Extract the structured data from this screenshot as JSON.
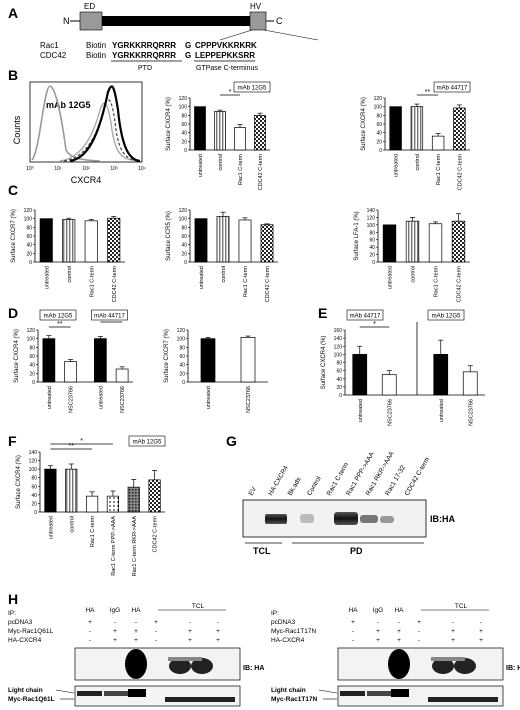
{
  "panel_labels": {
    "a": "A",
    "b": "B",
    "c": "C",
    "d": "D",
    "e": "E",
    "f": "F",
    "g": "G",
    "h": "H"
  },
  "schematic": {
    "n_term": "N",
    "c_term": "C",
    "domain_ed": "ED",
    "domain_hv": "HV",
    "rows": [
      {
        "name": "Rac1",
        "tag": "Biotin",
        "ptd": "YGRKKRRQRRR",
        "linker": "G",
        "ctail": "CPPPVKKRKRK"
      },
      {
        "name": "CDC42",
        "tag": "Biotin",
        "ptd": "YGRKKRRQRRR",
        "linker": "G",
        "ctail": "LEPPEPKKSRR"
      }
    ],
    "label_ptd": "PTD",
    "label_gtpase": "GTPase C-terminus"
  },
  "histogram": {
    "antibody": "mAb 12G5",
    "ylabel": "Counts",
    "xlabel": "CXCR4",
    "xticks": [
      "10⁰",
      "10¹",
      "10²",
      "10³",
      "10⁴"
    ]
  },
  "colors": {
    "black": "#000000",
    "white": "#ffffff",
    "striped": "#b0b0b0",
    "dark_gray": "#555555"
  },
  "chart_data": [
    {
      "id": "b1",
      "type": "bar",
      "annotation": "mAb 12G5",
      "ylabel": "Surface CXCR4 (%)",
      "ylim": [
        0,
        120
      ],
      "yticks": [
        0,
        20,
        40,
        60,
        80,
        100,
        120
      ],
      "categories": [
        "untreated",
        "control",
        "Rac1 C-term",
        "CDC42 C-term"
      ],
      "values": [
        100,
        89,
        52,
        80
      ],
      "errors": [
        0,
        3,
        7,
        5
      ],
      "fills": [
        "black",
        "striped",
        "white",
        "checker"
      ],
      "sig": [
        {
          "from": 1,
          "to": 2,
          "label": "*"
        }
      ]
    },
    {
      "id": "b2",
      "type": "bar",
      "annotation": "mAb 44717",
      "ylabel": "Surface CXCR4 (%)",
      "ylim": [
        0,
        120
      ],
      "yticks": [
        0,
        20,
        40,
        60,
        80,
        100,
        120
      ],
      "categories": [
        "untreated",
        "control",
        "Rac1 C-term",
        "CDC42 C-term"
      ],
      "values": [
        100,
        100,
        32,
        97
      ],
      "errors": [
        0,
        6,
        6,
        7
      ],
      "fills": [
        "black",
        "striped",
        "white",
        "checker"
      ],
      "sig": [
        {
          "from": 1,
          "to": 2,
          "label": "**"
        }
      ]
    },
    {
      "id": "c1",
      "type": "bar",
      "ylabel": "Surface CXCR7 (%)",
      "ylim": [
        0,
        120
      ],
      "yticks": [
        0,
        20,
        40,
        60,
        80,
        100,
        120
      ],
      "categories": [
        "untreated",
        "control",
        "Rac1 C-term",
        "CDC42 C-term"
      ],
      "values": [
        100,
        98,
        95,
        101
      ],
      "errors": [
        0,
        3,
        3,
        4
      ],
      "fills": [
        "black",
        "striped",
        "white",
        "checker"
      ]
    },
    {
      "id": "c2",
      "type": "bar",
      "ylabel": "Surface CCR5 (%)",
      "ylim": [
        0,
        120
      ],
      "yticks": [
        0,
        20,
        40,
        60,
        80,
        100,
        120
      ],
      "categories": [
        "untreated",
        "control",
        "Rac1 C-term",
        "CDC42 C-term"
      ],
      "values": [
        100,
        105,
        97,
        86
      ],
      "errors": [
        0,
        10,
        5,
        2
      ],
      "fills": [
        "black",
        "striped",
        "white",
        "checker"
      ]
    },
    {
      "id": "c3",
      "type": "bar",
      "ylabel": "Surface LFA-1 (%)",
      "ylim": [
        0,
        140
      ],
      "yticks": [
        0,
        20,
        40,
        60,
        80,
        100,
        120,
        140
      ],
      "categories": [
        "untreated",
        "control",
        "Rac1 C-term",
        "CDC42 C-term"
      ],
      "values": [
        100,
        110,
        103,
        110
      ],
      "errors": [
        0,
        10,
        5,
        20
      ],
      "fills": [
        "black",
        "striped",
        "white",
        "checker"
      ]
    },
    {
      "id": "d1",
      "type": "bar",
      "ylabel": "Surface CXCR4 (%)",
      "ylim": [
        0,
        120
      ],
      "yticks": [
        0,
        20,
        40,
        60,
        80,
        100,
        120
      ],
      "categories": [
        "untreated",
        "NSC23766",
        "untreated",
        "NSC23766"
      ],
      "values": [
        100,
        47,
        100,
        30
      ],
      "errors": [
        7,
        5,
        5,
        5
      ],
      "fills": [
        "black",
        "white",
        "black",
        "white"
      ],
      "annotations": [
        "mAb 12G5",
        "mAb 44717"
      ],
      "sig": [
        {
          "from": 0,
          "to": 1,
          "label": "**"
        },
        {
          "from": 2,
          "to": 3,
          "label": "**"
        }
      ]
    },
    {
      "id": "d2",
      "type": "bar",
      "ylabel": "Surface CXCR7 (%)",
      "ylim": [
        0,
        120
      ],
      "yticks": [
        0,
        20,
        40,
        60,
        80,
        100,
        120
      ],
      "categories": [
        "untreated",
        "NSC23766"
      ],
      "values": [
        100,
        103
      ],
      "errors": [
        3,
        3
      ],
      "fills": [
        "black",
        "white"
      ]
    },
    {
      "id": "e1",
      "type": "bar",
      "ylabel": "Surface CXCR4 (%)",
      "ylim": [
        0,
        160
      ],
      "yticks": [
        0,
        20,
        40,
        60,
        80,
        100,
        120,
        140,
        160
      ],
      "categories": [
        "untreated",
        "NSC23766",
        "untreated",
        "NSC23766"
      ],
      "values": [
        100,
        50,
        100,
        57
      ],
      "errors": [
        20,
        10,
        35,
        15
      ],
      "fills": [
        "black",
        "white",
        "black",
        "white"
      ],
      "annotations": [
        "mAb 44717",
        "mAb 12G5"
      ],
      "sig": [
        {
          "from": 0,
          "to": 1,
          "label": "*"
        }
      ]
    },
    {
      "id": "f1",
      "type": "bar",
      "annotation": "mAb 12G5",
      "ylabel": "Surface CXCR4 (%)",
      "ylim": [
        0,
        140
      ],
      "yticks": [
        0,
        20,
        40,
        60,
        80,
        100,
        120,
        140
      ],
      "categories": [
        "untreated",
        "control",
        "Rac1 C-term",
        "Rac1 C-term PPP->AAA",
        "Rac1 C-term RKR->AAA",
        "CDC42 C-term"
      ],
      "values": [
        100,
        100,
        37,
        37,
        58,
        75
      ],
      "errors": [
        8,
        12,
        10,
        12,
        18,
        22
      ],
      "fills": [
        "black",
        "striped",
        "white",
        "dotted",
        "dense",
        "checker"
      ],
      "sig": [
        {
          "from": 0,
          "to": 2,
          "label": "**"
        },
        {
          "from": 0,
          "to": 3,
          "label": "*"
        }
      ]
    }
  ],
  "blot_g": {
    "lanes": [
      "EV",
      "HA-CXCR4",
      "Bk.ads",
      "Control",
      "Rac1 C-term",
      "Rac1 PPP->AAA",
      "Rac1 RKR->AAA",
      "Rac1 17-32",
      "CDC42 C-term"
    ],
    "ib": "IB:HA",
    "group_tcl": "TCL",
    "group_pd": "PD"
  },
  "blot_h": [
    {
      "rows": [
        {
          "label": "IP:",
          "vals": [
            "HA",
            "IgG",
            "HA",
            "",
            "TCL",
            "",
            ""
          ]
        },
        {
          "label": "pcDNA3",
          "vals": [
            "+",
            "",
            "",
            "+",
            "",
            "",
            ""
          ]
        },
        {
          "label": "Myc-Rac1Q61L",
          "vals": [
            "",
            "+",
            "+",
            "",
            "+",
            "+",
            ""
          ]
        },
        {
          "label": "HA-CXCR4",
          "vals": [
            "",
            "+",
            "+",
            "",
            "+",
            "+",
            ""
          ]
        }
      ],
      "signs": [
        [
          "+",
          "-",
          "-",
          "+",
          "-",
          "-"
        ],
        [
          "-",
          "+",
          "+",
          "-",
          "+",
          "+"
        ],
        [
          "-",
          "+",
          "+",
          "-",
          "+",
          "+"
        ]
      ],
      "ib": "IB: HA",
      "light_chain": "Light chain",
      "myc_label": "Myc-Rac1Q61L"
    },
    {
      "rows": [
        {
          "label": "IP:",
          "vals": [
            "HA",
            "IgG",
            "HA",
            "",
            "TCL",
            "",
            ""
          ]
        },
        {
          "label": "pcDNA3",
          "vals": []
        },
        {
          "label": "Myc-Rac1T17N",
          "vals": []
        },
        {
          "label": "HA-CXCR4",
          "vals": []
        }
      ],
      "signs": [
        [
          "+",
          "-",
          "-",
          "+",
          "-",
          "-"
        ],
        [
          "-",
          "+",
          "+",
          "-",
          "+",
          "+"
        ],
        [
          "-",
          "+",
          "+",
          "-",
          "+",
          "+"
        ]
      ],
      "ib": "IB: HA",
      "light_chain": "Light chain",
      "myc_label": "Myc-Rac1T17N"
    }
  ]
}
